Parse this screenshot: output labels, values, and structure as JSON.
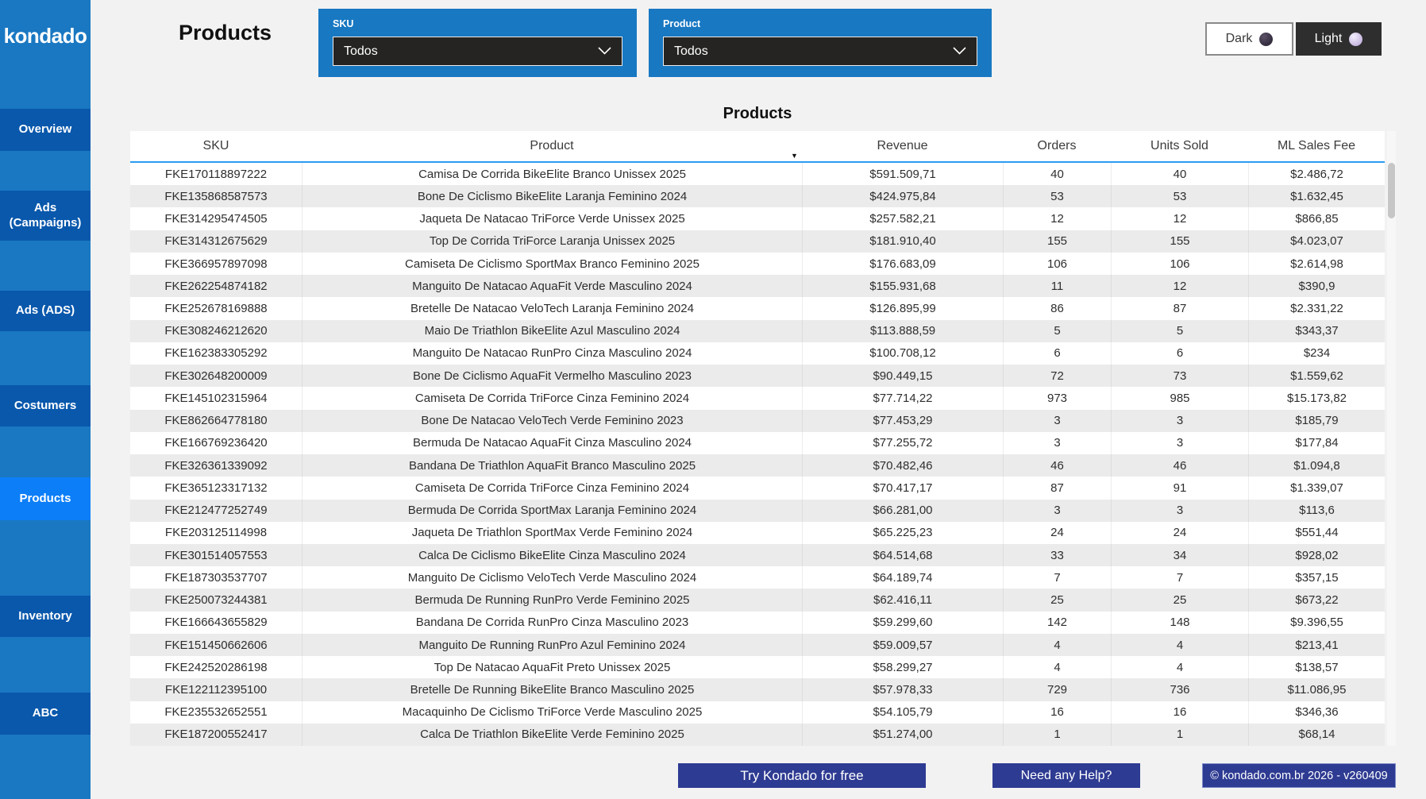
{
  "sidebar": {
    "logo": "kondado",
    "items": [
      {
        "label": "Overview",
        "active": false
      },
      {
        "label": "Ads (Campaigns)",
        "active": false
      },
      {
        "label": "Ads (ADS)",
        "active": false
      },
      {
        "label": "Costumers",
        "active": false
      },
      {
        "label": "Products",
        "active": true
      },
      {
        "label": "Inventory",
        "active": false
      },
      {
        "label": "ABC",
        "active": false
      }
    ]
  },
  "header": {
    "page_title": "Products",
    "filters": {
      "sku": {
        "label": "SKU",
        "value": "Todos"
      },
      "product": {
        "label": "Product",
        "value": "Todos"
      }
    },
    "theme": {
      "dark_label": "Dark",
      "light_label": "Light"
    }
  },
  "icons": {
    "sort_descending": "▼",
    "chevron_down": "⌄"
  },
  "table": {
    "title": "Products",
    "columns": [
      "SKU",
      "Product",
      "Revenue",
      "Orders",
      "Units Sold",
      "ML Sales Fee"
    ],
    "sorted_by": "Revenue",
    "sort_direction": "descending",
    "rows": [
      [
        "FKE170118897222",
        "Camisa De Corrida BikeElite Branco Unissex 2025",
        "$591.509,71",
        "40",
        "40",
        "$2.486,72"
      ],
      [
        "FKE135868587573",
        "Bone De Ciclismo BikeElite Laranja Feminino 2024",
        "$424.975,84",
        "53",
        "53",
        "$1.632,45"
      ],
      [
        "FKE314295474505",
        "Jaqueta De Natacao TriForce Verde Unissex 2025",
        "$257.582,21",
        "12",
        "12",
        "$866,85"
      ],
      [
        "FKE314312675629",
        "Top De Corrida TriForce Laranja Unissex 2025",
        "$181.910,40",
        "155",
        "155",
        "$4.023,07"
      ],
      [
        "FKE366957897098",
        "Camiseta De Ciclismo SportMax Branco Feminino 2025",
        "$176.683,09",
        "106",
        "106",
        "$2.614,98"
      ],
      [
        "FKE262254874182",
        "Manguito De Natacao AquaFit Verde Masculino 2024",
        "$155.931,68",
        "11",
        "12",
        "$390,9"
      ],
      [
        "FKE252678169888",
        "Bretelle De Natacao VeloTech Laranja Feminino 2024",
        "$126.895,99",
        "86",
        "87",
        "$2.331,22"
      ],
      [
        "FKE308246212620",
        "Maio De Triathlon BikeElite Azul Masculino 2024",
        "$113.888,59",
        "5",
        "5",
        "$343,37"
      ],
      [
        "FKE162383305292",
        "Manguito De Natacao RunPro Cinza Masculino 2024",
        "$100.708,12",
        "6",
        "6",
        "$234"
      ],
      [
        "FKE302648200009",
        "Bone De Ciclismo AquaFit Vermelho Masculino 2023",
        "$90.449,15",
        "72",
        "73",
        "$1.559,62"
      ],
      [
        "FKE145102315964",
        "Camiseta De Corrida TriForce Cinza Feminino 2024",
        "$77.714,22",
        "973",
        "985",
        "$15.173,82"
      ],
      [
        "FKE862664778180",
        "Bone De Natacao VeloTech Verde Feminino 2023",
        "$77.453,29",
        "3",
        "3",
        "$185,79"
      ],
      [
        "FKE166769236420",
        "Bermuda De Natacao AquaFit Cinza Masculino 2024",
        "$77.255,72",
        "3",
        "3",
        "$177,84"
      ],
      [
        "FKE326361339092",
        "Bandana De Triathlon AquaFit Branco Masculino 2025",
        "$70.482,46",
        "46",
        "46",
        "$1.094,8"
      ],
      [
        "FKE365123317132",
        "Camiseta De Corrida TriForce Cinza Feminino 2024",
        "$70.417,17",
        "87",
        "91",
        "$1.339,07"
      ],
      [
        "FKE212477252749",
        "Bermuda De Corrida SportMax Laranja Feminino 2024",
        "$66.281,00",
        "3",
        "3",
        "$113,6"
      ],
      [
        "FKE203125114998",
        "Jaqueta De Triathlon SportMax Verde Feminino 2024",
        "$65.225,23",
        "24",
        "24",
        "$551,44"
      ],
      [
        "FKE301514057553",
        "Calca De Ciclismo BikeElite Cinza Masculino 2024",
        "$64.514,68",
        "33",
        "34",
        "$928,02"
      ],
      [
        "FKE187303537707",
        "Manguito De Ciclismo VeloTech Verde Masculino 2024",
        "$64.189,74",
        "7",
        "7",
        "$357,15"
      ],
      [
        "FKE250073244381",
        "Bermuda De Running RunPro Verde Feminino 2025",
        "$62.416,11",
        "25",
        "25",
        "$673,22"
      ],
      [
        "FKE166643655829",
        "Bandana De Corrida RunPro Cinza Masculino 2023",
        "$59.299,60",
        "142",
        "148",
        "$9.396,55"
      ],
      [
        "FKE151450662606",
        "Manguito De Running RunPro Azul Feminino 2024",
        "$59.009,57",
        "4",
        "4",
        "$213,41"
      ],
      [
        "FKE242520286198",
        "Top De Natacao AquaFit Preto Unissex 2025",
        "$58.299,27",
        "4",
        "4",
        "$138,57"
      ],
      [
        "FKE122112395100",
        "Bretelle De Running BikeElite Branco Masculino 2025",
        "$57.978,33",
        "729",
        "736",
        "$11.086,95"
      ],
      [
        "FKE235532652551",
        "Macaquinho De Ciclismo TriForce Verde Masculino 2025",
        "$54.105,79",
        "16",
        "16",
        "$346,36"
      ],
      [
        "FKE187200552417",
        "Calca De Triathlon BikeElite Verde Feminino 2025",
        "$51.274,00",
        "1",
        "1",
        "$68,14"
      ]
    ]
  },
  "footer": {
    "buttons": [
      "Try Kondado for free",
      "Need any Help?",
      "© kondado.com.br 2026 - v260409"
    ]
  },
  "colors": {
    "sidebar_bg": "#1a78c2",
    "nav_button_bg": "#0958ac",
    "nav_active_bg": "#0c7ef8",
    "filter_card_bg": "#1878c2",
    "dropdown_bg": "#252423",
    "header_underline": "#2b9cf2",
    "row_alt_bg": "#ebebeb",
    "footer_button_bg": "#2e3b92",
    "page_bg": "#f2f2f2"
  }
}
